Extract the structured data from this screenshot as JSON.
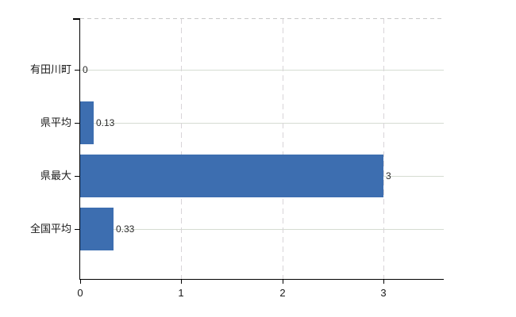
{
  "chart_data": {
    "type": "bar",
    "orientation": "horizontal",
    "title": "",
    "xlabel": "",
    "ylabel": "",
    "categories": [
      "有田川町",
      "県平均",
      "県最大",
      "全国平均"
    ],
    "values": [
      0,
      0.13,
      3,
      0.33
    ],
    "value_labels": [
      "0",
      "0.13",
      "3",
      "0.33"
    ],
    "x_ticks": [
      0,
      1,
      2,
      3
    ],
    "x_tick_labels": [
      "0",
      "1",
      "2",
      "3"
    ],
    "xlim": [
      0,
      3.6
    ],
    "grid": true,
    "legend": "none",
    "bar_color": "#3d6eb0",
    "h_grid_color": "#d5dcd2",
    "v_grid_color": "#d8d4d8",
    "top_border_color": "#c9c9c9",
    "axis_color": "#000000",
    "text_color": "#1a1a1a"
  }
}
